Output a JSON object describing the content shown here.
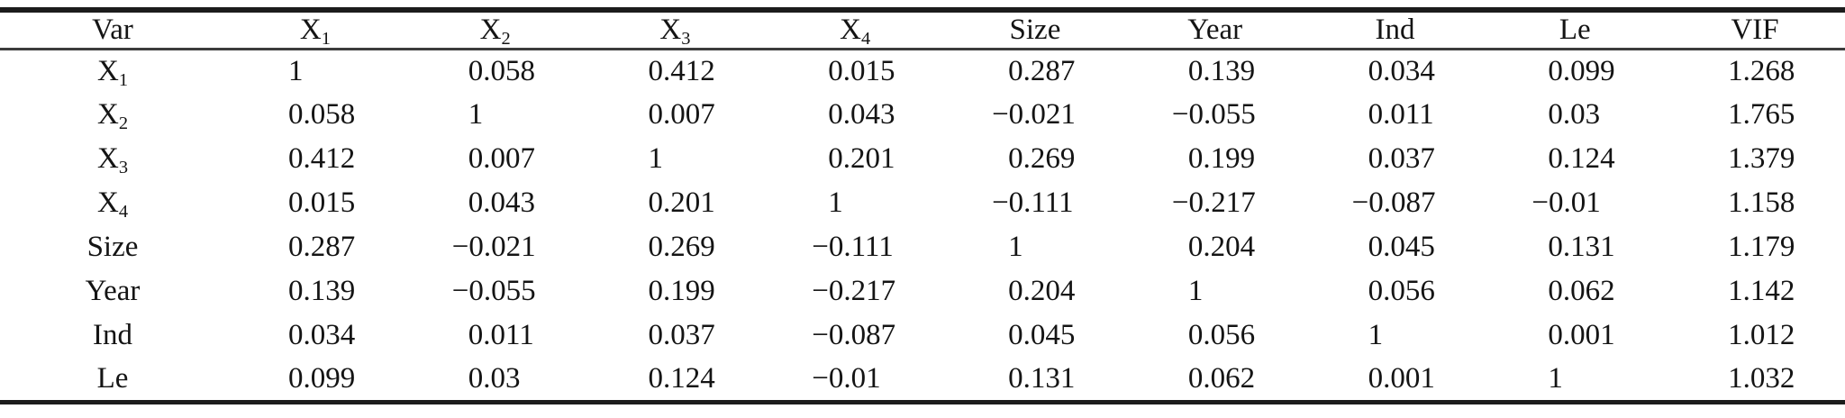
{
  "colors": {
    "background": "#ffffff",
    "text": "#141414",
    "rule_heavy": "#1c1c1c",
    "rule_light": "#3c3c3c"
  },
  "table": {
    "columns": [
      {
        "text": "Var",
        "sub": ""
      },
      {
        "text": "X",
        "sub": "1"
      },
      {
        "text": "X",
        "sub": "2"
      },
      {
        "text": "X",
        "sub": "3"
      },
      {
        "text": "X",
        "sub": "4"
      },
      {
        "text": "Size",
        "sub": ""
      },
      {
        "text": "Year",
        "sub": ""
      },
      {
        "text": "Ind",
        "sub": ""
      },
      {
        "text": "Le",
        "sub": ""
      },
      {
        "text": "VIF",
        "sub": ""
      }
    ],
    "rows": [
      {
        "label": {
          "text": "X",
          "sub": "1"
        },
        "values": [
          "1",
          "0.058",
          "0.412",
          "0.015",
          "0.287",
          "0.139",
          "0.034",
          "0.099",
          "1.268"
        ]
      },
      {
        "label": {
          "text": "X",
          "sub": "2"
        },
        "values": [
          "0.058",
          "1",
          "0.007",
          "0.043",
          "−0.021",
          "−0.055",
          "0.011",
          "0.03",
          "1.765"
        ]
      },
      {
        "label": {
          "text": "X",
          "sub": "3"
        },
        "values": [
          "0.412",
          "0.007",
          "1",
          "0.201",
          "0.269",
          "0.199",
          "0.037",
          "0.124",
          "1.379"
        ]
      },
      {
        "label": {
          "text": "X",
          "sub": "4"
        },
        "values": [
          "0.015",
          "0.043",
          "0.201",
          "1",
          "−0.111",
          "−0.217",
          "−0.087",
          "−0.01",
          "1.158"
        ]
      },
      {
        "label": {
          "text": "Size",
          "sub": ""
        },
        "values": [
          "0.287",
          "−0.021",
          "0.269",
          "−0.111",
          "1",
          "0.204",
          "0.045",
          "0.131",
          "1.179"
        ]
      },
      {
        "label": {
          "text": "Year",
          "sub": ""
        },
        "values": [
          "0.139",
          "−0.055",
          "0.199",
          "−0.217",
          "0.204",
          "1",
          "0.056",
          "0.062",
          "1.142"
        ]
      },
      {
        "label": {
          "text": "Ind",
          "sub": ""
        },
        "values": [
          "0.034",
          "0.011",
          "0.037",
          "−0.087",
          "0.045",
          "0.056",
          "1",
          "0.001",
          "1.012"
        ]
      },
      {
        "label": {
          "text": "Le",
          "sub": ""
        },
        "values": [
          "0.099",
          "0.03",
          "0.124",
          "−0.01",
          "0.131",
          "0.062",
          "0.001",
          "1",
          "1.032"
        ]
      }
    ]
  }
}
